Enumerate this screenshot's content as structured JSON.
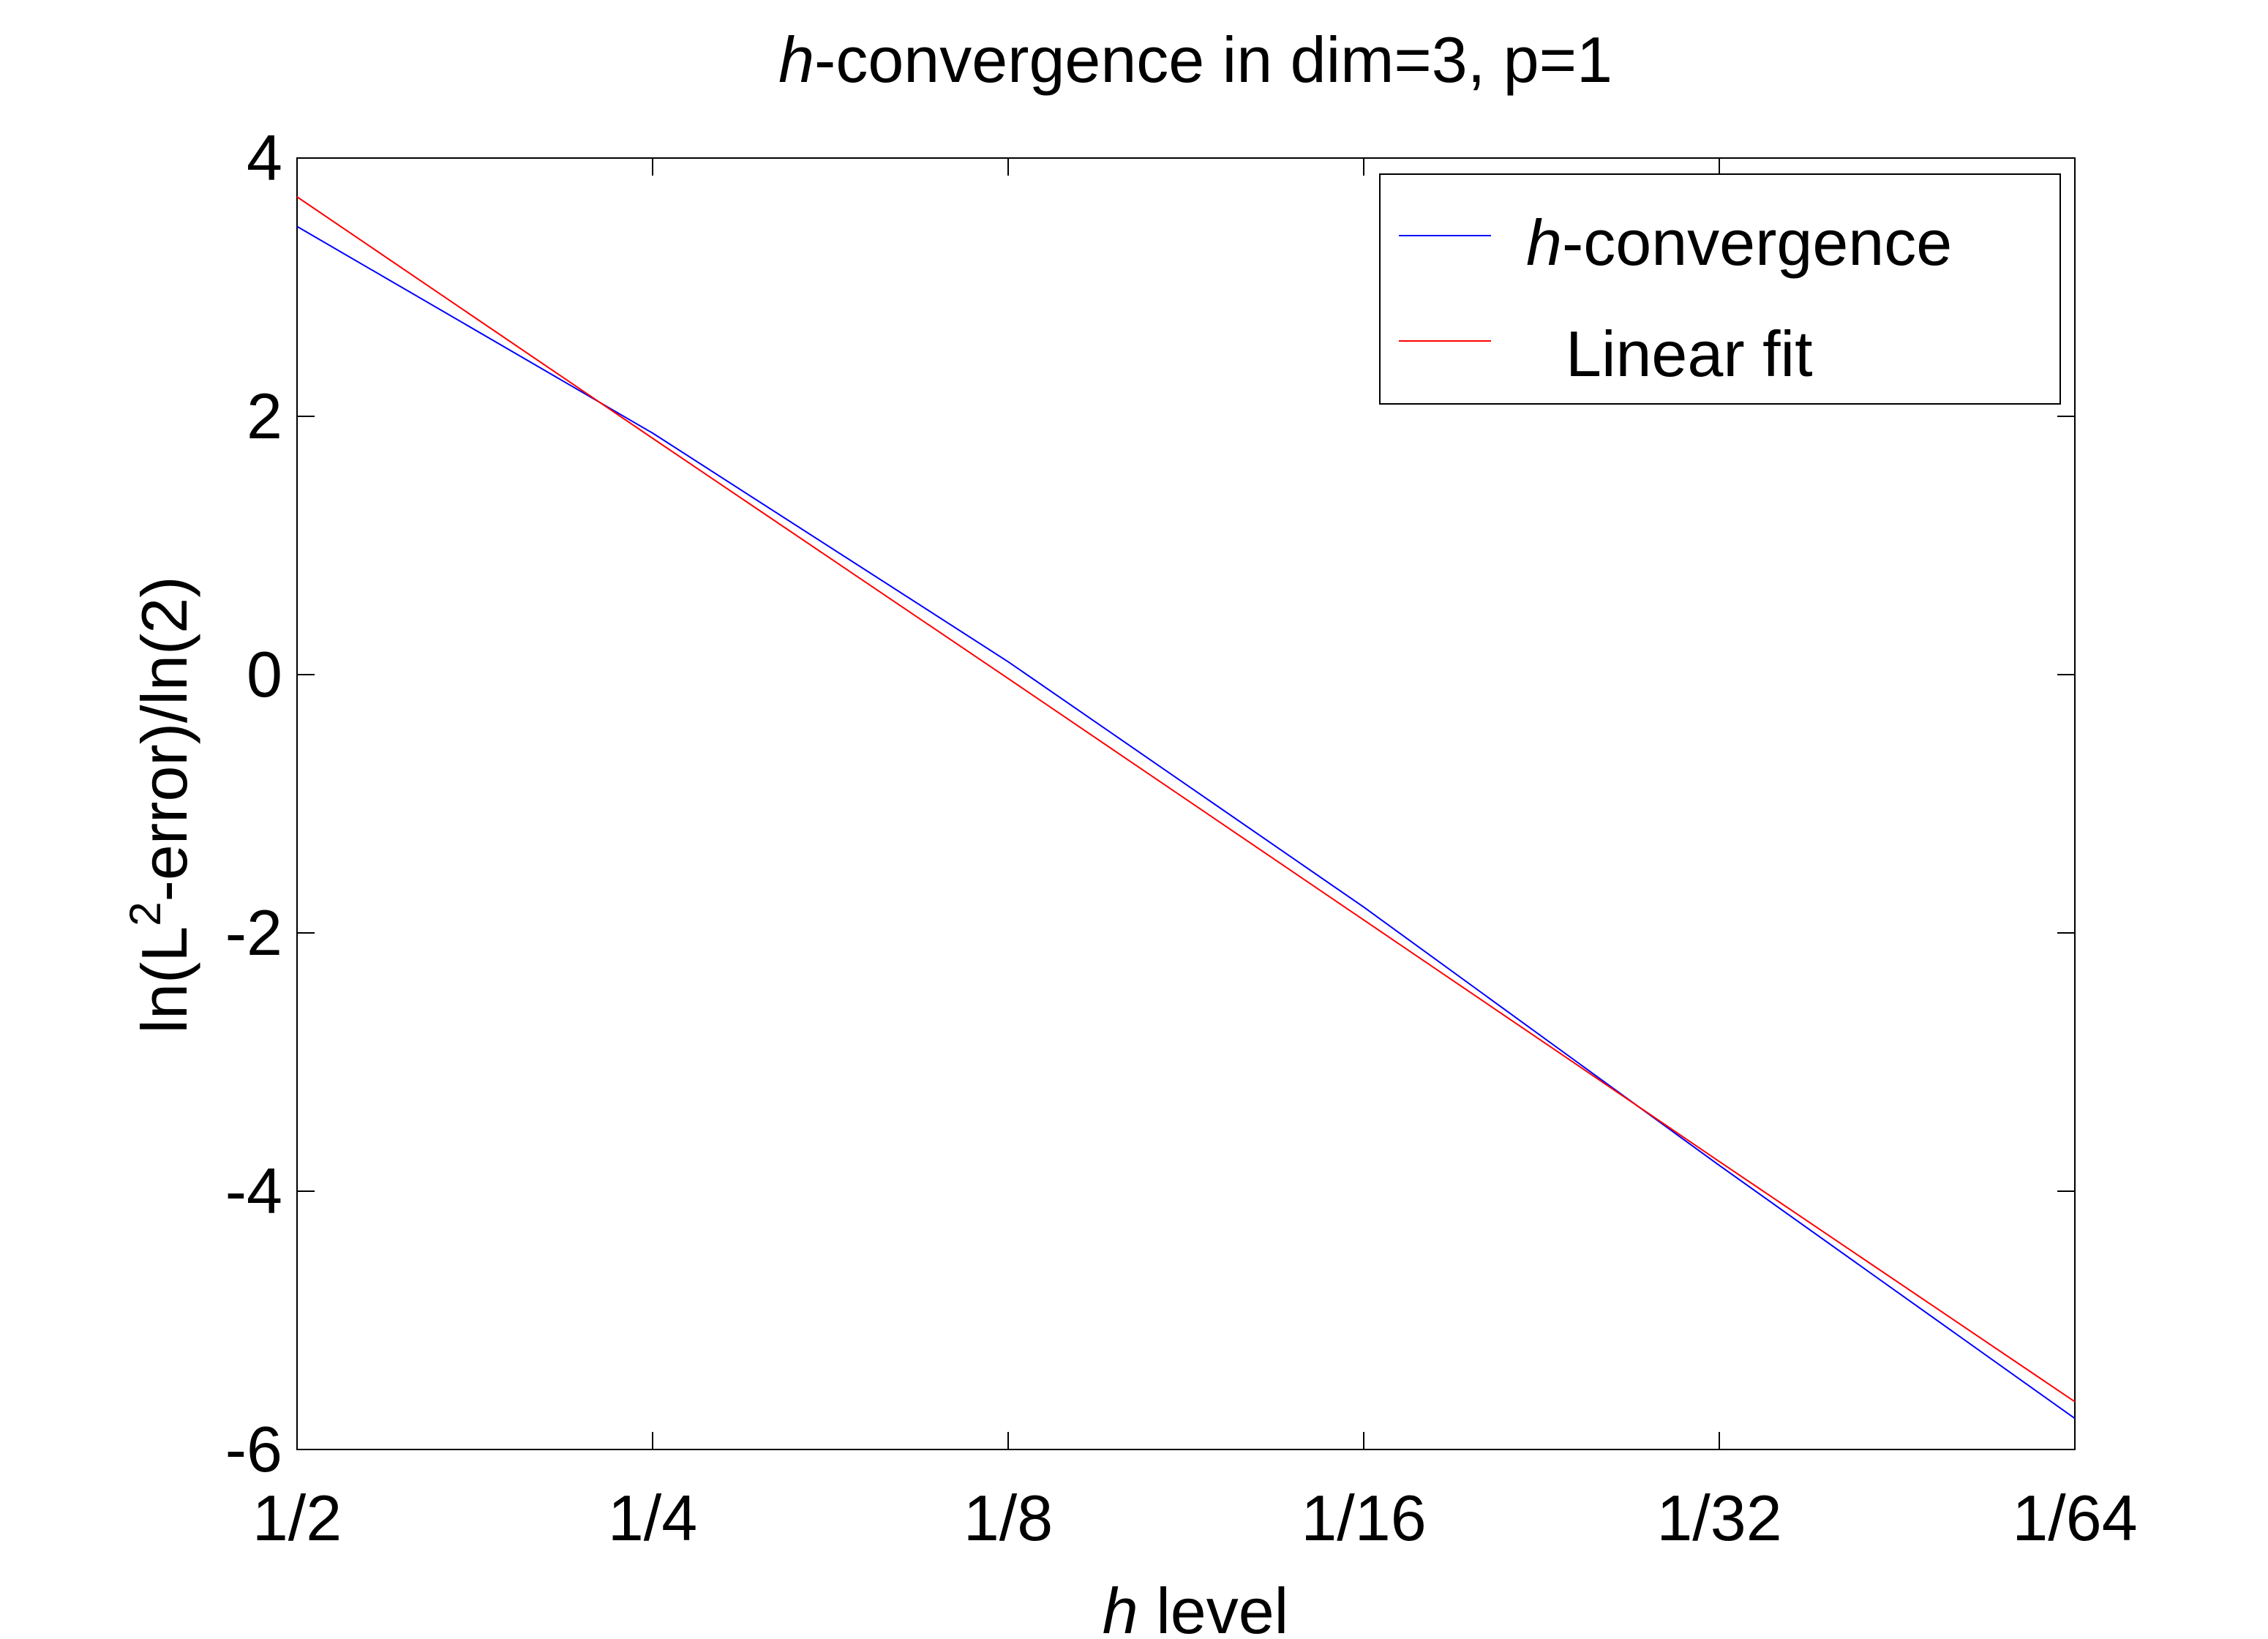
{
  "chart_data": {
    "type": "line",
    "title_prefix": "h",
    "title_rest": "-convergence in dim=3, p=1",
    "xlabel_prefix": "h",
    "xlabel_rest": " level",
    "ylabel_pre": "ln(L",
    "ylabel_sup": "2",
    "ylabel_post": "-error)/ln(2)",
    "x_categories": [
      "1/2",
      "1/4",
      "1/8",
      "1/16",
      "1/32",
      "1/64"
    ],
    "ylim": [
      -6,
      4
    ],
    "yticks": [
      4,
      2,
      0,
      -2,
      -4,
      -6
    ],
    "grid": false,
    "legend_position": "top-right",
    "series": [
      {
        "name_prefix": "h",
        "name_rest": "-convergence",
        "color": "#0000ff",
        "values": [
          3.47,
          1.87,
          0.1,
          -1.8,
          -3.8,
          -5.76
        ]
      },
      {
        "name_prefix": "",
        "name_rest": "Linear fit",
        "color": "#ff0000",
        "values": [
          3.7,
          1.83,
          -0.03,
          -1.9,
          -3.77,
          -5.63
        ]
      }
    ]
  }
}
